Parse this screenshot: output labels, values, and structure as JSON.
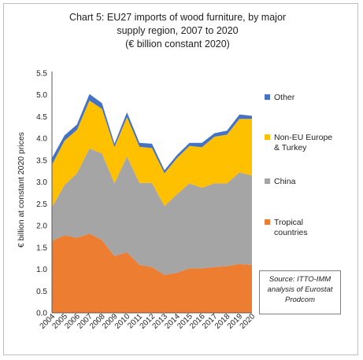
{
  "title_lines": [
    "Chart 5: EU27 imports of wood furniture, by major",
    "supply region, 2007 to 2020",
    "(€ billion constant 2020)"
  ],
  "source_lines": [
    "Source: ITTO-IMM",
    "analysis of Eurostat",
    "Prodcom"
  ],
  "legend": [
    {
      "key": "other",
      "lines": [
        "Other"
      ]
    },
    {
      "key": "noneu",
      "lines": [
        "Non-EU Europe",
        "& Turkey"
      ]
    },
    {
      "key": "china",
      "lines": [
        "China"
      ]
    },
    {
      "key": "tropical",
      "lines": [
        "Tropical",
        "countries"
      ]
    }
  ],
  "chart_data": {
    "type": "area",
    "stacked": true,
    "ylabel": "€ billion at constant 2020 prices",
    "xlabel": "",
    "ylim": [
      0,
      5.5
    ],
    "yticks": [
      "0.0",
      "0.5",
      "1.0",
      "1.5",
      "2.0",
      "2.5",
      "3.0",
      "3.5",
      "4.0",
      "4.5",
      "5.0",
      "5.5"
    ],
    "grid": false,
    "legend_position": "right",
    "x": [
      "2004",
      "2005",
      "2006",
      "2007",
      "2008",
      "2009",
      "2010",
      "2011",
      "2012",
      "2013",
      "2014",
      "2015",
      "2016",
      "2017",
      "2018",
      "2019",
      "2020"
    ],
    "series": [
      {
        "name": "Tropical countries",
        "key": "tropical",
        "color": "#ED7D31",
        "values": [
          1.65,
          1.78,
          1.72,
          1.82,
          1.67,
          1.3,
          1.39,
          1.1,
          1.05,
          0.87,
          0.92,
          1.02,
          1.02,
          1.05,
          1.07,
          1.12,
          1.1
        ]
      },
      {
        "name": "China",
        "key": "china",
        "color": "#A5A5A5",
        "values": [
          0.78,
          1.15,
          1.48,
          1.95,
          1.99,
          1.67,
          2.2,
          1.88,
          1.93,
          1.58,
          1.8,
          1.95,
          1.85,
          1.92,
          1.9,
          2.1,
          2.05
        ]
      },
      {
        "name": "Non-EU Europe & Turkey",
        "key": "noneu",
        "color": "#FFC000",
        "values": [
          0.97,
          1.02,
          1.0,
          1.1,
          1.02,
          0.83,
          0.9,
          0.83,
          0.8,
          0.75,
          0.83,
          0.86,
          0.93,
          1.07,
          1.12,
          1.23,
          1.3
        ]
      },
      {
        "name": "Other",
        "key": "other",
        "color": "#4472C4",
        "values": [
          0.15,
          0.12,
          0.12,
          0.15,
          0.13,
          0.08,
          0.11,
          0.09,
          0.1,
          0.07,
          0.07,
          0.07,
          0.1,
          0.08,
          0.09,
          0.1,
          0.07
        ]
      }
    ]
  }
}
